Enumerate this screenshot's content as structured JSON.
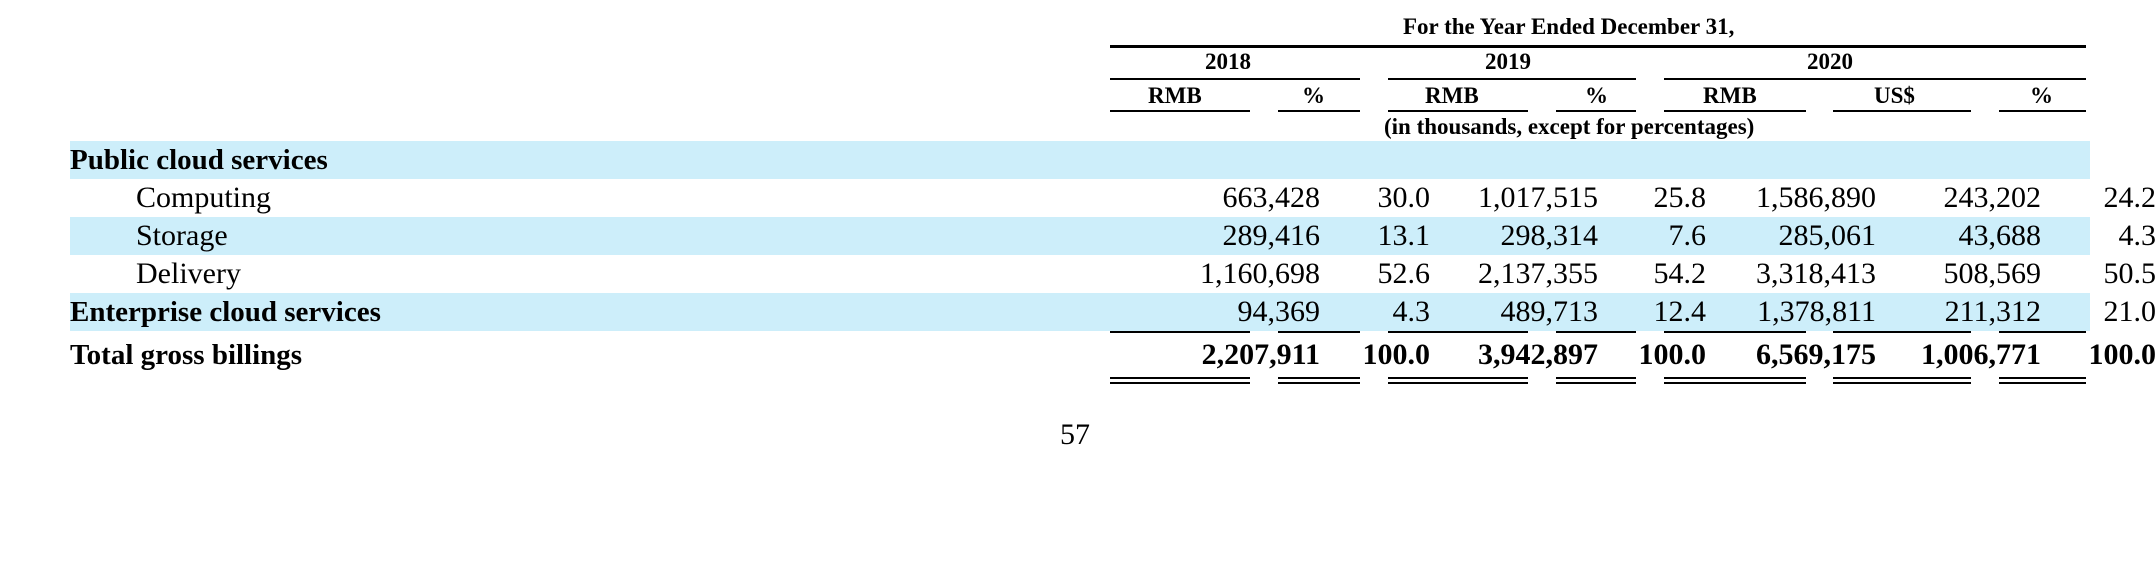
{
  "header": {
    "period_title": "For the Year Ended December 31,",
    "years": [
      "2018",
      "2019",
      "2020"
    ],
    "columns": [
      "RMB",
      "%",
      "RMB",
      "%",
      "RMB",
      "US$",
      "%"
    ],
    "units_note": "(in thousands, except for percentages)"
  },
  "rows": [
    {
      "label": "Public cloud services",
      "values": [
        "",
        "",
        "",
        "",
        "",
        "",
        ""
      ]
    },
    {
      "label": "Computing",
      "values": [
        "663,428",
        "30.0",
        "1,017,515",
        "25.8",
        "1,586,890",
        "243,202",
        "24.2"
      ]
    },
    {
      "label": "Storage",
      "values": [
        "289,416",
        "13.1",
        "298,314",
        "7.6",
        "285,061",
        "43,688",
        "4.3"
      ]
    },
    {
      "label": "Delivery",
      "values": [
        "1,160,698",
        "52.6",
        "2,137,355",
        "54.2",
        "3,318,413",
        "508,569",
        "50.5"
      ]
    },
    {
      "label": "Enterprise cloud services",
      "values": [
        "94,369",
        "4.3",
        "489,713",
        "12.4",
        "1,378,811",
        "211,312",
        "21.0"
      ]
    },
    {
      "label": "Total gross billings",
      "values": [
        "2,207,911",
        "100.0",
        "3,942,897",
        "100.0",
        "6,569,175",
        "1,006,771",
        "100.0"
      ]
    }
  ],
  "page_number": "57"
}
